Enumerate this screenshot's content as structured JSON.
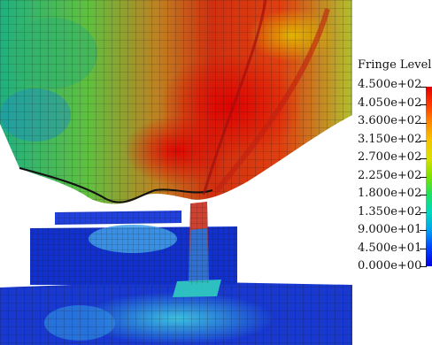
{
  "legend": {
    "title": "Fringe Levels",
    "levels": [
      "4.500e+02",
      "4.050e+02",
      "3.600e+02",
      "3.150e+02",
      "2.700e+02",
      "2.250e+02",
      "1.800e+02",
      "1.350e+02",
      "9.000e+01",
      "4.500e+01",
      "0.000e+00"
    ]
  },
  "colors": {
    "scale": [
      "#e00000",
      "#ff3a00",
      "#ff8a00",
      "#f5c400",
      "#d8e000",
      "#7fe000",
      "#1fe060",
      "#00d8c0",
      "#00a0f0",
      "#0040ff",
      "#0000e0"
    ],
    "mesh_lines": "#1a1a1a",
    "background": "#ffffff"
  }
}
